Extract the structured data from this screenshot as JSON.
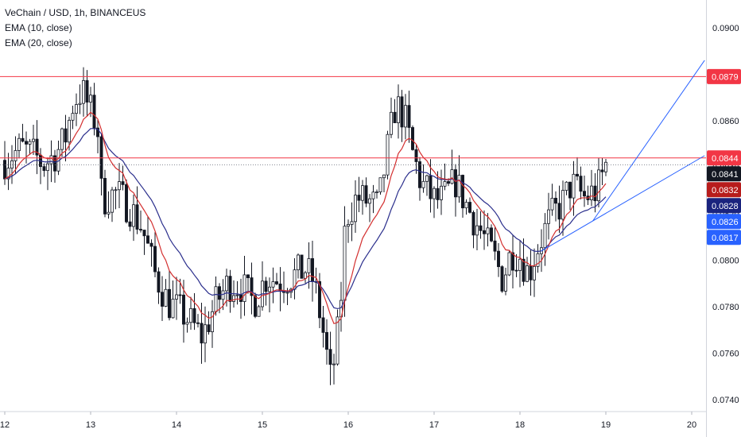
{
  "legend": {
    "title": "VeChain / USD, 1h, BINANCEUS",
    "ema10": "EMA (10, close)",
    "ema20": "EMA (20, close)"
  },
  "colors": {
    "up": "#131722",
    "down": "#131722",
    "ema10": "#d32f2f",
    "ema20": "#2a2e8c",
    "resistance": "#f23645",
    "trendline": "#2962ff",
    "price_line": "#787b86"
  },
  "chart_data": {
    "type": "candlestick",
    "pair": "VeChain / USD",
    "interval": "1h",
    "exchange": "BINANCEUS",
    "xlabel": "",
    "ylabel": "",
    "x_ticks": [
      "12",
      "13",
      "14",
      "15",
      "16",
      "17",
      "18",
      "19",
      "20"
    ],
    "y_ticks": [
      "0.0740",
      "0.0760",
      "0.0780",
      "0.0800",
      "0.0820",
      "0.0840",
      "0.0860",
      "0.0880",
      "0.0900"
    ],
    "ylim": [
      0.0731,
      0.0914
    ],
    "xlim_days": [
      12,
      20.1
    ],
    "horizontal_levels": [
      0.0879,
      0.0844
    ],
    "current_price": 0.0841,
    "price_badges": [
      {
        "value": 0.0879,
        "label": "0.0879",
        "bg": "#f23645"
      },
      {
        "value": 0.0844,
        "label": "0.0844",
        "bg": "#f23645"
      },
      {
        "value": 0.0841,
        "label": "0.0841",
        "bg": "#131722"
      },
      {
        "value": 0.0832,
        "label": "0.0832",
        "bg": "#b71c1c"
      },
      {
        "value": 0.0828,
        "label": "0.0828",
        "bg": "#1a237e"
      },
      {
        "value": 0.0826,
        "label": "0.0826",
        "bg": "#2962ff"
      },
      {
        "value": 0.0817,
        "label": "0.0817",
        "bg": "#2962ff"
      }
    ],
    "trendlines": [
      {
        "from": {
          "day": 18.25,
          "price": 0.0804
        },
        "to": {
          "day": 20.15,
          "price": 0.0845
        }
      },
      {
        "from": {
          "day": 18.85,
          "price": 0.0817
        },
        "to": {
          "day": 20.15,
          "price": 0.0886
        }
      }
    ],
    "series": [
      {
        "name": "EMA (10, close)",
        "values": []
      },
      {
        "name": "EMA (20, close)",
        "values": []
      }
    ],
    "close_waypoints": [
      [
        12.0,
        0.0843
      ],
      [
        12.1,
        0.0846
      ],
      [
        12.2,
        0.0848
      ],
      [
        12.35,
        0.0845
      ],
      [
        12.45,
        0.0841
      ],
      [
        12.6,
        0.0846
      ],
      [
        12.7,
        0.0852
      ],
      [
        12.8,
        0.0868
      ],
      [
        12.9,
        0.0873
      ],
      [
        13.0,
        0.0864
      ],
      [
        13.08,
        0.0858
      ],
      [
        13.13,
        0.0826
      ],
      [
        13.3,
        0.0829
      ],
      [
        13.45,
        0.0823
      ],
      [
        13.6,
        0.0814
      ],
      [
        13.75,
        0.0794
      ],
      [
        13.9,
        0.0782
      ],
      [
        14.1,
        0.0776
      ],
      [
        14.3,
        0.0767
      ],
      [
        14.45,
        0.0781
      ],
      [
        14.6,
        0.079
      ],
      [
        14.75,
        0.0789
      ],
      [
        14.9,
        0.0782
      ],
      [
        15.05,
        0.0793
      ],
      [
        15.2,
        0.0791
      ],
      [
        15.35,
        0.0793
      ],
      [
        15.5,
        0.0796
      ],
      [
        15.6,
        0.0791
      ],
      [
        15.7,
        0.0771
      ],
      [
        15.8,
        0.0747
      ],
      [
        15.9,
        0.0775
      ],
      [
        15.97,
        0.0818
      ],
      [
        16.1,
        0.0827
      ],
      [
        16.25,
        0.0825
      ],
      [
        16.35,
        0.0823
      ],
      [
        16.45,
        0.0846
      ],
      [
        16.55,
        0.0867
      ],
      [
        16.65,
        0.0862
      ],
      [
        16.75,
        0.0846
      ],
      [
        16.85,
        0.0833
      ],
      [
        17.0,
        0.0826
      ],
      [
        17.1,
        0.0826
      ],
      [
        17.25,
        0.0834
      ],
      [
        17.4,
        0.0822
      ],
      [
        17.55,
        0.0812
      ],
      [
        17.7,
        0.0801
      ],
      [
        17.8,
        0.0792
      ],
      [
        17.9,
        0.0804
      ],
      [
        18.0,
        0.0802
      ],
      [
        18.1,
        0.0794
      ],
      [
        18.2,
        0.0805
      ],
      [
        18.35,
        0.0818
      ],
      [
        18.5,
        0.0825
      ],
      [
        18.6,
        0.0833
      ],
      [
        18.75,
        0.0827
      ],
      [
        18.9,
        0.083
      ],
      [
        19.0,
        0.0841
      ]
    ]
  }
}
